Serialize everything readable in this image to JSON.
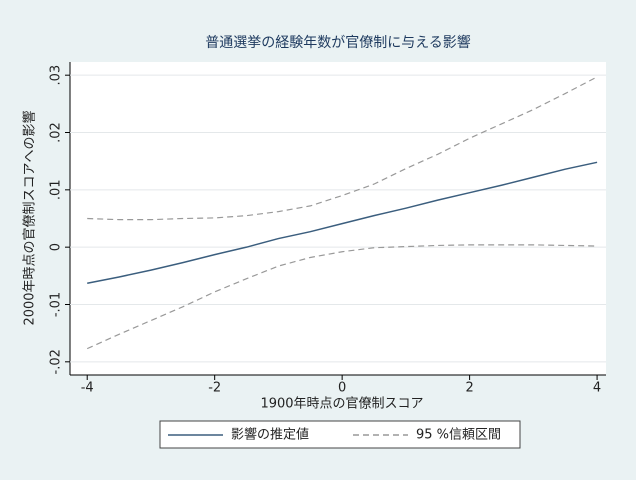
{
  "chart_data": {
    "type": "line",
    "title": "普通選挙の経験年数が官僚制に与える影響",
    "x_label": "1900年時点の官僚制スコア",
    "y_label": "2000年時点の官僚制スコアへの影響",
    "x": [
      -4,
      -3.5,
      -3,
      -2.5,
      -2,
      -1.5,
      -1,
      -0.5,
      0,
      0.5,
      1,
      1.5,
      2,
      2.5,
      3,
      3.5,
      4
    ],
    "series": [
      {
        "name": "影響の推定値",
        "color": "#3b5e7e",
        "style": "solid",
        "values": [
          -0.0063,
          -0.0052,
          -0.004,
          -0.0027,
          -0.0013,
          0.0,
          0.0015,
          0.0027,
          0.0041,
          0.0055,
          0.0068,
          0.0082,
          0.0095,
          0.0108,
          0.0122,
          0.0136,
          0.0148
        ]
      },
      {
        "name": "95 %信頼区間",
        "color": "#999999",
        "style": "dashed",
        "upper": [
          0.005,
          0.0048,
          0.0048,
          0.005,
          0.0051,
          0.0055,
          0.0062,
          0.0072,
          0.009,
          0.011,
          0.0137,
          0.0162,
          0.019,
          0.0215,
          0.024,
          0.0268,
          0.0297
        ],
        "lower": [
          -0.0177,
          -0.0152,
          -0.0128,
          -0.0104,
          -0.0078,
          -0.0055,
          -0.0033,
          -0.0018,
          -0.0008,
          -0.0001,
          0.0001,
          0.0003,
          0.0004,
          0.0004,
          0.0004,
          0.0003,
          0.0002
        ]
      }
    ],
    "xlim": [
      -4.27,
      4.14
    ],
    "xticks": [
      -4,
      -2,
      0,
      2,
      4
    ],
    "ylim": [
      -0.0223,
      0.0323
    ],
    "yticks": [
      {
        "value": -0.02,
        "label": "-.02"
      },
      {
        "value": -0.01,
        "label": "-.01"
      },
      0,
      {
        "value": 0.01,
        "label": ".01"
      },
      {
        "value": 0.02,
        "label": ".02"
      },
      {
        "value": 0.03,
        "label": ".03"
      }
    ],
    "grid": true,
    "legend": "bottom"
  }
}
